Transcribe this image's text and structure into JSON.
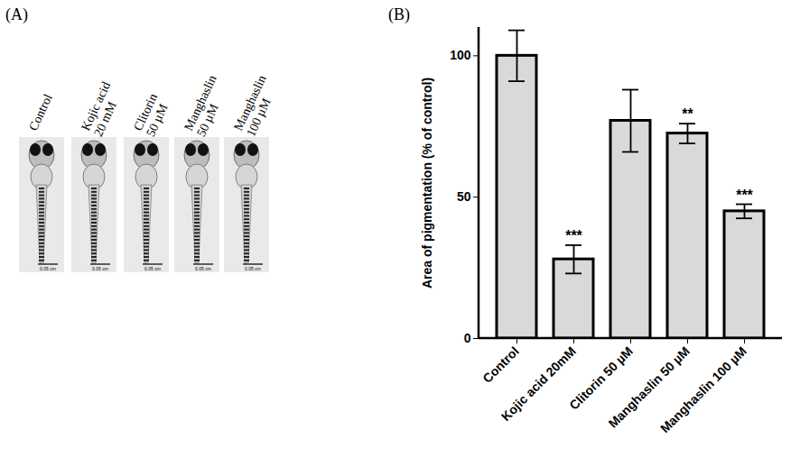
{
  "panel_a": {
    "title": "(A)",
    "labels": [
      [
        "Control"
      ],
      [
        "Kojic acid",
        "20 mM"
      ],
      [
        "Clitorin",
        "50 µM"
      ],
      [
        "Manghaslin",
        "50 µM"
      ],
      [
        "Manghaslin",
        "100 µM"
      ]
    ],
    "scale_bar_label": "0.05 cm"
  },
  "chart_data": {
    "type": "bar",
    "title": "(B)",
    "y_label": "Area of pigmentation (% of control)",
    "categories": [
      "Control",
      "Kojic acid 20mM",
      "Clitorin 50 µM",
      "Manghaslin 50 µM",
      "Manghaslin 100 µM"
    ],
    "values": [
      100,
      28,
      77,
      72.5,
      45
    ],
    "errors": [
      9,
      5,
      11,
      3.5,
      2.5
    ],
    "significance": [
      null,
      "***",
      null,
      "**",
      "***"
    ],
    "color": "#d9d9d9",
    "ylim": [
      0,
      110
    ],
    "yticks": [
      0,
      50,
      100
    ],
    "grid": false
  }
}
